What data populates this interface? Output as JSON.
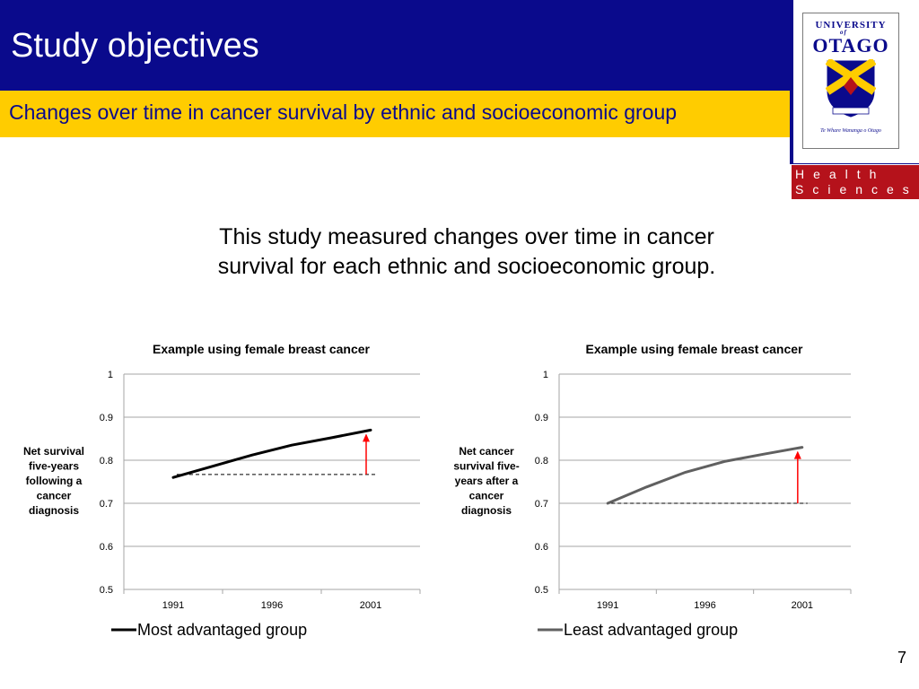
{
  "slide": {
    "title": "Study objectives",
    "subtitle": "Changes over time in cancer survival by ethnic and socioeconomic group",
    "body_lines": [
      "This study measured changes over time in cancer",
      "survival for each ethnic and socioeconomic group."
    ],
    "page_number": "7"
  },
  "logo": {
    "university_label": "UNIVERSITY",
    "of_label": "of",
    "name": "OTAGO",
    "motto": "Te Whare Wananga o Otago",
    "health_sciences_line1": "Health",
    "health_sciences_line2": "Sciences",
    "colors": {
      "navy": "#0a0a8c",
      "gold": "#ffcc00",
      "crimson": "#b5121b"
    }
  },
  "chart_data": [
    {
      "type": "line",
      "title": "Example using female breast cancer",
      "ylabel_lines": [
        "Net survival",
        "five-years",
        "following a",
        "cancer",
        "diagnosis"
      ],
      "categories": [
        "1991",
        "1996",
        "2001"
      ],
      "ylim": [
        0.5,
        1
      ],
      "yticks": [
        "0.5",
        "0.6",
        "0.7",
        "0.8",
        "0.9",
        "1"
      ],
      "grid": true,
      "legend": "bottom",
      "series": [
        {
          "name": "Most advantaged group",
          "color": "#000000",
          "x": [
            1991,
            1993,
            1995,
            1997,
            1999,
            2001
          ],
          "values": [
            0.76,
            0.786,
            0.812,
            0.835,
            0.852,
            0.87
          ]
        }
      ],
      "baseline": 0.767,
      "arrow": {
        "x": 2001,
        "from": 0.767,
        "to": 0.87,
        "color": "#ff0000"
      }
    },
    {
      "type": "line",
      "title": "Example using female breast cancer",
      "ylabel_lines": [
        "Net cancer",
        "survival five-",
        "years after a",
        "cancer",
        "diagnosis"
      ],
      "categories": [
        "1991",
        "1996",
        "2001"
      ],
      "ylim": [
        0.5,
        1
      ],
      "yticks": [
        "0.5",
        "0.6",
        "0.7",
        "0.8",
        "0.9",
        "1"
      ],
      "grid": true,
      "legend": "bottom",
      "series": [
        {
          "name": "Least advantaged group",
          "color": "#606060",
          "x": [
            1991,
            1993,
            1995,
            1997,
            1999,
            2001
          ],
          "values": [
            0.7,
            0.738,
            0.772,
            0.797,
            0.814,
            0.83
          ]
        }
      ],
      "baseline": 0.7,
      "arrow": {
        "x": 2001,
        "from": 0.7,
        "to": 0.83,
        "color": "#ff0000"
      }
    }
  ]
}
